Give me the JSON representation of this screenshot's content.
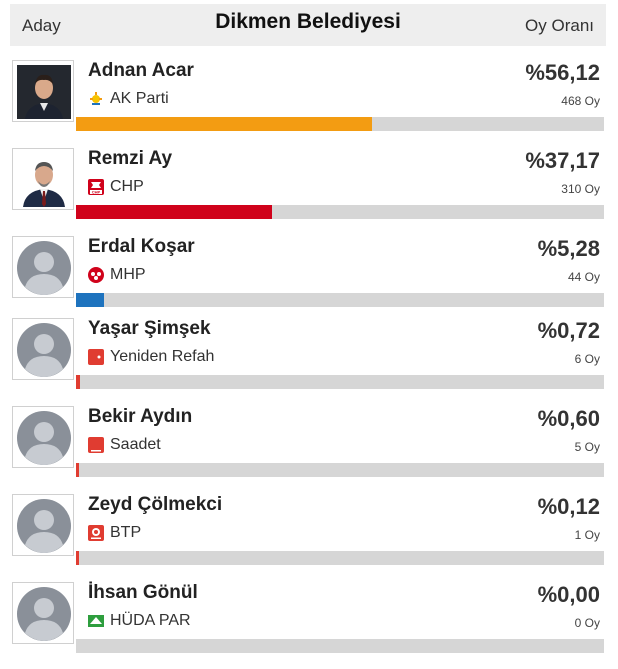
{
  "header": {
    "left": "Aday",
    "title": "Dikmen Belediyesi",
    "right": "Oy Oranı"
  },
  "candidates": [
    {
      "name": "Adnan Acar",
      "party": "AK Parti",
      "percent": "%56,12",
      "votes": "468 Oy",
      "share": 0.5612,
      "color": "#f39c12",
      "logo_icon": "ak-parti-logo-icon"
    },
    {
      "name": "Remzi Ay",
      "party": "CHP",
      "percent": "%37,17",
      "votes": "310 Oy",
      "share": 0.3717,
      "color": "#d0021b",
      "logo_icon": "chp-logo-icon"
    },
    {
      "name": "Erdal Koşar",
      "party": "MHP",
      "percent": "%5,28",
      "votes": "44 Oy",
      "share": 0.0528,
      "color": "#1e73be",
      "logo_icon": "mhp-logo-icon"
    },
    {
      "name": "Yaşar Şimşek",
      "party": "Yeniden Refah",
      "percent": "%0,72",
      "votes": "6 Oy",
      "share": 0.0072,
      "color": "#e03c31",
      "logo_icon": "yeniden-refah-logo-icon"
    },
    {
      "name": "Bekir Aydın",
      "party": "Saadet",
      "percent": "%0,60",
      "votes": "5 Oy",
      "share": 0.006,
      "color": "#e03c31",
      "logo_icon": "saadet-logo-icon"
    },
    {
      "name": "Zeyd Çölmekci",
      "party": "BTP",
      "percent": "%0,12",
      "votes": "1 Oy",
      "share": 0.0012,
      "color": "#e03c31",
      "logo_icon": "btp-logo-icon"
    },
    {
      "name": "İhsan Gönül",
      "party": "HÜDA PAR",
      "percent": "%0,00",
      "votes": "0 Oy",
      "share": 0.0,
      "color": "#2e9e3e",
      "logo_icon": "huda-par-logo-icon"
    }
  ]
}
